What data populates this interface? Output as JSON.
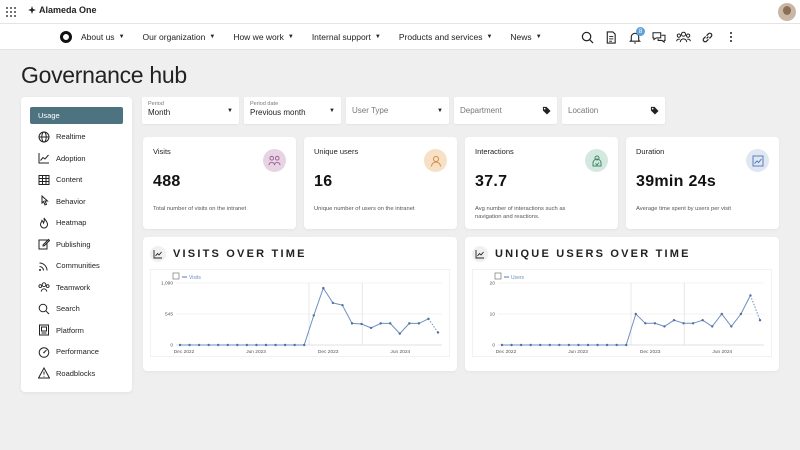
{
  "topbar": {
    "brand": "Alameda One"
  },
  "nav": {
    "items": [
      {
        "label": "About us"
      },
      {
        "label": "Our organization"
      },
      {
        "label": "How we work"
      },
      {
        "label": "Internal support"
      },
      {
        "label": "Products and services"
      },
      {
        "label": "News"
      }
    ],
    "notification_count": "8"
  },
  "page": {
    "title": "Governance hub"
  },
  "sidebar": {
    "items": [
      {
        "label": "Usage",
        "icon": "bar-chart-icon",
        "active": true
      },
      {
        "label": "Realtime",
        "icon": "globe-icon"
      },
      {
        "label": "Adoption",
        "icon": "trend-icon"
      },
      {
        "label": "Content",
        "icon": "table-icon"
      },
      {
        "label": "Behavior",
        "icon": "cursor-icon"
      },
      {
        "label": "Heatmap",
        "icon": "flame-icon"
      },
      {
        "label": "Publishing",
        "icon": "edit-icon"
      },
      {
        "label": "Communities",
        "icon": "signal-icon"
      },
      {
        "label": "Teamwork",
        "icon": "team-icon"
      },
      {
        "label": "Search",
        "icon": "search-icon"
      },
      {
        "label": "Platform",
        "icon": "platform-icon"
      },
      {
        "label": "Performance",
        "icon": "gauge-icon"
      },
      {
        "label": "Roadblocks",
        "icon": "warning-icon"
      }
    ]
  },
  "filters": [
    {
      "label": "Period",
      "value": "Month",
      "kind": "select"
    },
    {
      "label": "Period date",
      "value": "Previous month",
      "kind": "select"
    },
    {
      "label": "",
      "placeholder": "User Type",
      "kind": "select"
    },
    {
      "label": "",
      "placeholder": "Department",
      "kind": "tag"
    },
    {
      "label": "",
      "placeholder": "Location",
      "kind": "tag"
    }
  ],
  "cards": [
    {
      "label": "Visits",
      "value": "488",
      "desc": "Total number of visits on the intranet",
      "color": "#e6d3e3",
      "icon": "people-icon"
    },
    {
      "label": "Unique users",
      "value": "16",
      "desc": "Unique number of users on the intranet",
      "color": "#f8e0c6",
      "icon": "user-icon"
    },
    {
      "label": "Interactions",
      "value": "37.7",
      "desc": "Avg number of interactions such as navigation and reactions.",
      "color": "#d5e8df",
      "icon": "interaction-icon"
    },
    {
      "label": "Duration",
      "value": "39min 24s",
      "desc": "Average time spent by users per visit",
      "color": "#dfe7f3",
      "icon": "chart-icon"
    }
  ],
  "panels": [
    {
      "title": "VISITS OVER TIME"
    },
    {
      "title": "UNIQUE USERS OVER TIME"
    }
  ],
  "chart_data": [
    {
      "type": "line",
      "series": [
        {
          "name": "Visits",
          "values": [
            0,
            0,
            0,
            0,
            0,
            0,
            0,
            0,
            0,
            0,
            0,
            0,
            0,
            0,
            520,
            1000,
            740,
            700,
            380,
            370,
            300,
            380,
            380,
            200,
            380,
            380,
            460,
            220
          ]
        }
      ],
      "x_labels": [
        "Dec 2022",
        "Jun 2023",
        "Dec 2023",
        "Jun 2024"
      ],
      "y_ticks": [
        "0",
        "545",
        "1,090"
      ],
      "ylim": [
        0,
        1090
      ]
    },
    {
      "type": "line",
      "series": [
        {
          "name": "Users",
          "values": [
            0,
            0,
            0,
            0,
            0,
            0,
            0,
            0,
            0,
            0,
            0,
            0,
            0,
            0,
            10,
            7,
            7,
            6,
            8,
            7,
            7,
            8,
            6,
            10,
            6,
            10,
            16,
            8
          ]
        }
      ],
      "x_labels": [
        "Dec 2022",
        "Jun 2023",
        "Dec 2023",
        "Jun 2024"
      ],
      "y_ticks": [
        "0",
        "10",
        "20"
      ],
      "ylim": [
        0,
        20
      ]
    }
  ]
}
